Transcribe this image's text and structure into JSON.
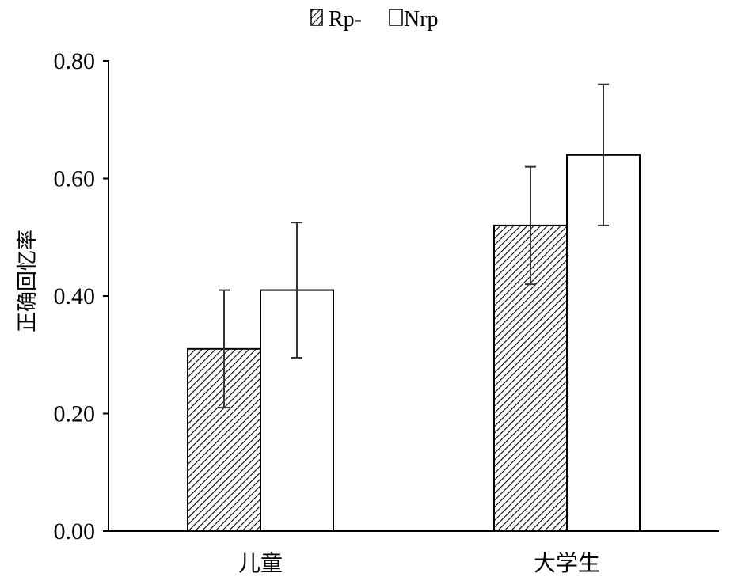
{
  "chart_data": {
    "type": "bar",
    "categories": [
      "儿童",
      "大学生"
    ],
    "series": [
      {
        "name": "Rp-",
        "values": [
          0.31,
          0.52
        ],
        "error": [
          0.1,
          0.1
        ],
        "pattern": "hatch",
        "color": "#000000"
      },
      {
        "name": "Nrp",
        "values": [
          0.41,
          0.64
        ],
        "error": [
          0.115,
          0.12
        ],
        "pattern": "none",
        "color": "#ffffff"
      }
    ],
    "title": "",
    "xlabel": "",
    "ylabel": "正确回忆率",
    "ylim": [
      0,
      0.8
    ],
    "yticks": [
      "0.00",
      "0.20",
      "0.40",
      "0.60",
      "0.80"
    ],
    "grid": false,
    "legend_position": "top"
  }
}
